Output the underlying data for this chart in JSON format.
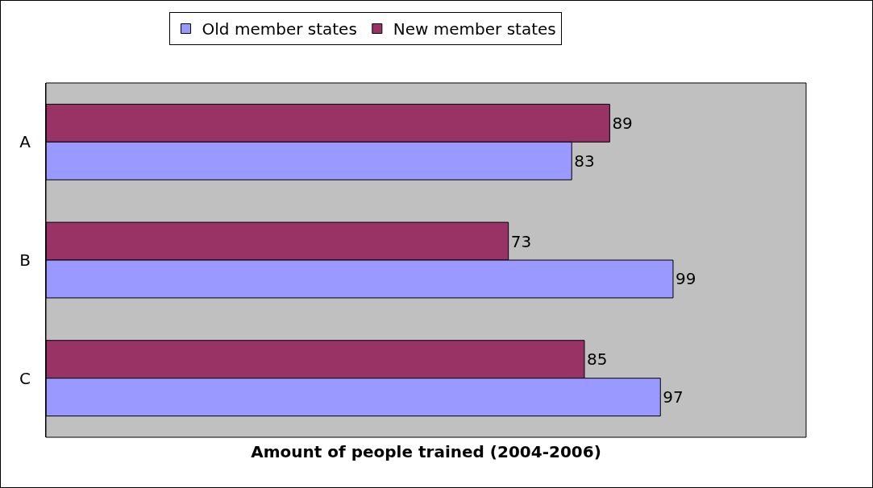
{
  "chart_data": {
    "type": "bar",
    "orientation": "horizontal",
    "xlabel": "Amount of people trained (2004-2006)",
    "categories": [
      "A",
      "B",
      "C"
    ],
    "series": [
      {
        "name": "Old member states",
        "color": "#9999ff",
        "values": [
          83,
          99,
          97
        ]
      },
      {
        "name": "New member states",
        "color": "#993366",
        "values": [
          89,
          73,
          85
        ]
      }
    ],
    "xlim": [
      0,
      120
    ],
    "tick_labels": "y",
    "data_labels": true,
    "legend": "top",
    "grid": false
  }
}
